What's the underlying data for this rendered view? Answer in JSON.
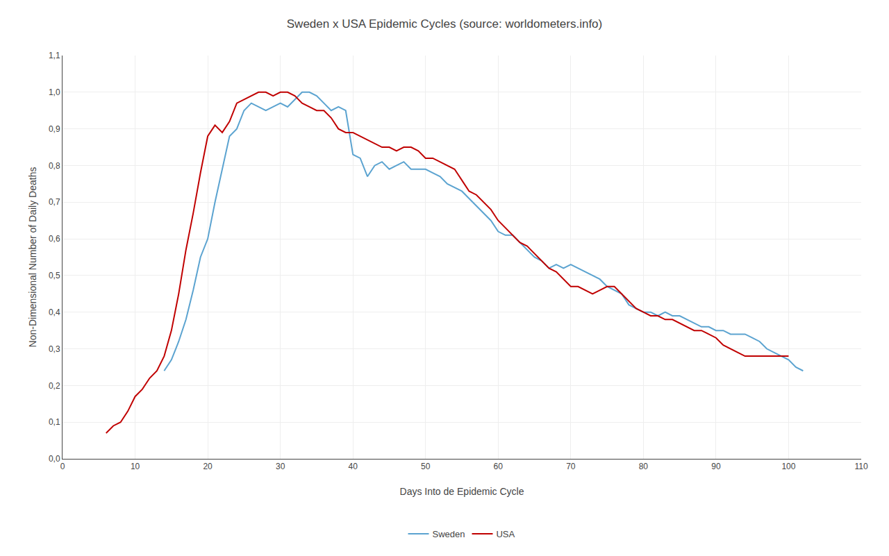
{
  "chart_data": {
    "type": "line",
    "title": "Sweden x USA Epidemic Cycles (source: worldometers.info)",
    "xlabel": "Days Into de Epidemic Cycle",
    "ylabel": "Non-Dimensional Number of Daily Deaths",
    "xlim": [
      0,
      110
    ],
    "ylim": [
      0.0,
      1.1
    ],
    "xticks": [
      0,
      10,
      20,
      30,
      40,
      50,
      60,
      70,
      80,
      90,
      100,
      110
    ],
    "yticks": [
      {
        "value": 0.0,
        "label": "0,0"
      },
      {
        "value": 0.1,
        "label": "0,1"
      },
      {
        "value": 0.2,
        "label": "0,2"
      },
      {
        "value": 0.3,
        "label": "0,3"
      },
      {
        "value": 0.4,
        "label": "0,4"
      },
      {
        "value": 0.5,
        "label": "0,5"
      },
      {
        "value": 0.6,
        "label": "0,6"
      },
      {
        "value": 0.7,
        "label": "0,7"
      },
      {
        "value": 0.8,
        "label": "0,8"
      },
      {
        "value": 0.9,
        "label": "0,9"
      },
      {
        "value": 1.0,
        "label": "1,0"
      },
      {
        "value": 1.1,
        "label": "1,1"
      }
    ],
    "grid": true,
    "legend": "lower center",
    "series": [
      {
        "name": "Sweden",
        "color": "#5BA3D0",
        "x": [
          14,
          15,
          16,
          17,
          18,
          19,
          20,
          21,
          22,
          23,
          24,
          25,
          26,
          27,
          28,
          29,
          30,
          31,
          32,
          33,
          34,
          35,
          36,
          37,
          38,
          39,
          40,
          41,
          42,
          43,
          44,
          45,
          46,
          47,
          48,
          49,
          50,
          51,
          52,
          53,
          54,
          55,
          56,
          57,
          58,
          59,
          60,
          61,
          62,
          63,
          64,
          65,
          66,
          67,
          68,
          69,
          70,
          71,
          72,
          73,
          74,
          75,
          76,
          77,
          78,
          79,
          80,
          81,
          82,
          83,
          84,
          85,
          86,
          87,
          88,
          89,
          90,
          91,
          92,
          93,
          94,
          95,
          96,
          97,
          98,
          99,
          100,
          101,
          102
        ],
        "values": [
          0.24,
          0.27,
          0.32,
          0.38,
          0.46,
          0.55,
          0.6,
          0.7,
          0.79,
          0.88,
          0.9,
          0.95,
          0.97,
          0.96,
          0.95,
          0.96,
          0.97,
          0.96,
          0.98,
          1.0,
          1.0,
          0.99,
          0.97,
          0.95,
          0.96,
          0.95,
          0.83,
          0.82,
          0.77,
          0.8,
          0.81,
          0.79,
          0.8,
          0.81,
          0.79,
          0.79,
          0.79,
          0.78,
          0.77,
          0.75,
          0.74,
          0.73,
          0.71,
          0.69,
          0.67,
          0.65,
          0.62,
          0.61,
          0.61,
          0.59,
          0.57,
          0.55,
          0.54,
          0.52,
          0.53,
          0.52,
          0.53,
          0.52,
          0.51,
          0.5,
          0.49,
          0.47,
          0.46,
          0.45,
          0.42,
          0.41,
          0.4,
          0.4,
          0.39,
          0.4,
          0.39,
          0.39,
          0.38,
          0.37,
          0.36,
          0.36,
          0.35,
          0.35,
          0.34,
          0.34,
          0.34,
          0.33,
          0.32,
          0.3,
          0.29,
          0.28,
          0.27,
          0.25,
          0.24
        ]
      },
      {
        "name": "USA",
        "color": "#C00000",
        "x": [
          6,
          7,
          8,
          9,
          10,
          11,
          12,
          13,
          14,
          15,
          16,
          17,
          18,
          19,
          20,
          21,
          22,
          23,
          24,
          25,
          26,
          27,
          28,
          29,
          30,
          31,
          32,
          33,
          34,
          35,
          36,
          37,
          38,
          39,
          40,
          41,
          42,
          43,
          44,
          45,
          46,
          47,
          48,
          49,
          50,
          51,
          52,
          53,
          54,
          55,
          56,
          57,
          58,
          59,
          60,
          61,
          62,
          63,
          64,
          65,
          66,
          67,
          68,
          69,
          70,
          71,
          72,
          73,
          74,
          75,
          76,
          77,
          78,
          79,
          80,
          81,
          82,
          83,
          84,
          85,
          86,
          87,
          88,
          89,
          90,
          91,
          92,
          93,
          94,
          95,
          96,
          97,
          98,
          99,
          100
        ],
        "values": [
          0.07,
          0.09,
          0.1,
          0.13,
          0.17,
          0.19,
          0.22,
          0.24,
          0.28,
          0.35,
          0.45,
          0.57,
          0.67,
          0.78,
          0.88,
          0.91,
          0.89,
          0.92,
          0.97,
          0.98,
          0.99,
          1.0,
          1.0,
          0.99,
          1.0,
          1.0,
          0.99,
          0.97,
          0.96,
          0.95,
          0.95,
          0.93,
          0.9,
          0.89,
          0.89,
          0.88,
          0.87,
          0.86,
          0.85,
          0.85,
          0.84,
          0.85,
          0.85,
          0.84,
          0.82,
          0.82,
          0.81,
          0.8,
          0.79,
          0.76,
          0.73,
          0.72,
          0.7,
          0.68,
          0.65,
          0.63,
          0.61,
          0.59,
          0.58,
          0.56,
          0.54,
          0.52,
          0.51,
          0.49,
          0.47,
          0.47,
          0.46,
          0.45,
          0.46,
          0.47,
          0.47,
          0.45,
          0.43,
          0.41,
          0.4,
          0.39,
          0.39,
          0.38,
          0.38,
          0.37,
          0.36,
          0.35,
          0.35,
          0.34,
          0.33,
          0.31,
          0.3,
          0.29,
          0.28,
          0.28,
          0.28,
          0.28,
          0.28,
          0.28,
          0.28
        ]
      }
    ]
  }
}
